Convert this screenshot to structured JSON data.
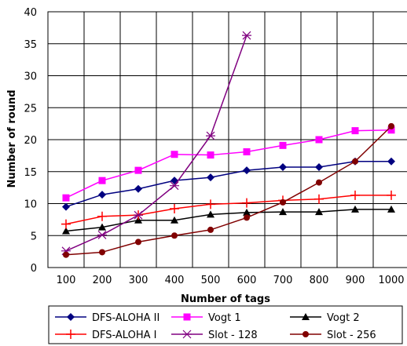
{
  "chart_data": {
    "type": "line",
    "title": "",
    "xlabel": "Number of tags",
    "ylabel": "Number of round",
    "x": [
      100,
      200,
      300,
      400,
      500,
      600,
      700,
      800,
      900,
      1000
    ],
    "ylim": [
      0,
      40
    ],
    "yticks": [
      0,
      5,
      10,
      15,
      20,
      25,
      30,
      35,
      40
    ],
    "grid": true,
    "legend_position": "bottom",
    "series": [
      {
        "name": "DFS-ALOHA II",
        "color": "#000080",
        "marker": "diamond",
        "values": [
          9.5,
          11.4,
          12.3,
          13.6,
          14.1,
          15.2,
          15.7,
          15.7,
          16.6,
          16.6
        ]
      },
      {
        "name": "Vogt 1",
        "color": "#ff00ff",
        "marker": "square",
        "values": [
          10.9,
          13.6,
          15.2,
          17.7,
          17.6,
          18.1,
          19.1,
          20.0,
          21.4,
          21.5
        ]
      },
      {
        "name": "Vogt 2",
        "color": "#000000",
        "marker": "triangle",
        "values": [
          5.7,
          6.3,
          7.4,
          7.4,
          8.3,
          8.6,
          8.7,
          8.7,
          9.1,
          9.1
        ]
      },
      {
        "name": "DFS-ALOHA I",
        "color": "#ff0000",
        "marker": "plus",
        "values": [
          6.8,
          8.0,
          8.2,
          9.2,
          9.9,
          10.1,
          10.5,
          10.7,
          11.3,
          11.3
        ]
      },
      {
        "name": "Slot - 128",
        "color": "#800080",
        "marker": "star",
        "values": [
          2.6,
          5.1,
          8.2,
          12.8,
          20.6,
          36.3,
          null,
          null,
          null,
          null
        ]
      },
      {
        "name": "Slot - 256",
        "color": "#800000",
        "marker": "circle",
        "values": [
          2.0,
          2.4,
          4.0,
          5.0,
          5.9,
          7.8,
          10.2,
          13.3,
          16.6,
          22.1
        ]
      }
    ]
  }
}
